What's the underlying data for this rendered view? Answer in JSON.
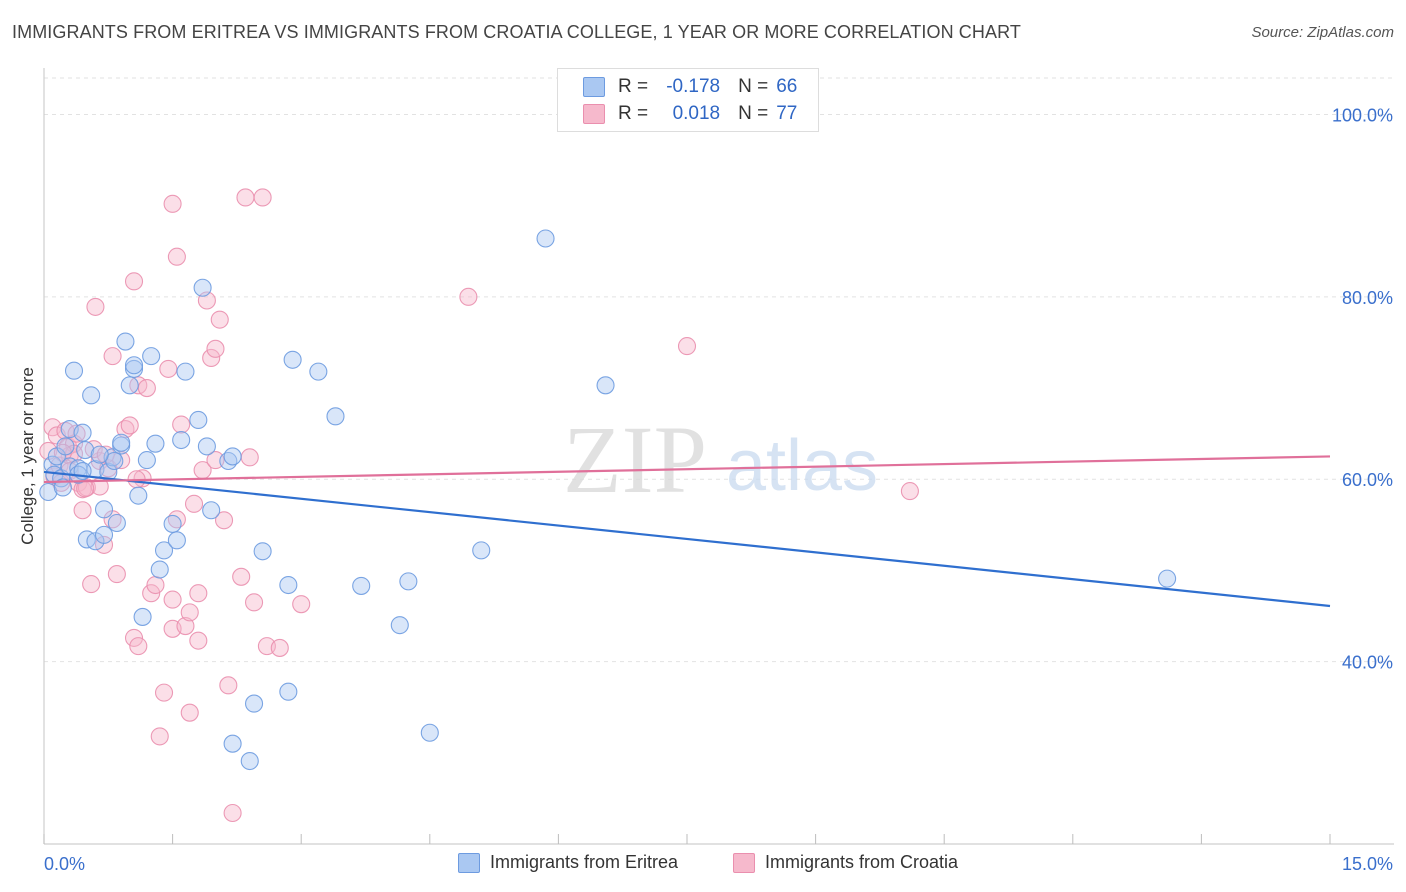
{
  "header": {
    "title": "IMMIGRANTS FROM ERITREA VS IMMIGRANTS FROM CROATIA COLLEGE, 1 YEAR OR MORE CORRELATION CHART",
    "source": "Source: ZipAtlas.com"
  },
  "watermark": {
    "zip": "ZIP",
    "atlas": "atlas"
  },
  "legend": {
    "eritrea": {
      "r_label": "R =",
      "r_value": "-0.178",
      "n_label": "N =",
      "n_value": "66"
    },
    "croatia": {
      "r_label": "R =",
      "r_value": "0.018",
      "n_label": "N =",
      "n_value": "77"
    }
  },
  "colors": {
    "eritrea_fill": "#aac8f2",
    "eritrea_stroke": "#6d9be0",
    "eritrea_line": "#2f6fcf",
    "croatia_fill": "#f6b9cc",
    "croatia_stroke": "#ea8fae",
    "croatia_line": "#e0709a",
    "tick_text": "#3a6fcc",
    "grid": "#e2e2e2"
  },
  "chart_data": {
    "type": "scatter",
    "xlabel": "",
    "ylabel": "College, 1 year or more",
    "xlim": [
      0,
      15
    ],
    "ylim": [
      20,
      104
    ],
    "x_ticks": [
      {
        "value": 0,
        "label": "0.0%"
      },
      {
        "value": 15,
        "label": "15.0%"
      }
    ],
    "y_ticks": [
      {
        "value": 40,
        "label": "40.0%"
      },
      {
        "value": 60,
        "label": "60.0%"
      },
      {
        "value": 80,
        "label": "80.0%"
      },
      {
        "value": 100,
        "label": "100.0%"
      }
    ],
    "grid": true,
    "legend_position": "top-center",
    "series": [
      {
        "name": "Immigrants from Eritrea",
        "trend": {
          "x": [
            0,
            15
          ],
          "y": [
            60.8,
            46.1
          ]
        },
        "points": [
          [
            0.05,
            58.6
          ],
          [
            0.1,
            61.6
          ],
          [
            0.12,
            60.5
          ],
          [
            0.15,
            62.5
          ],
          [
            0.2,
            60.1
          ],
          [
            0.22,
            59.1
          ],
          [
            0.25,
            63.6
          ],
          [
            0.3,
            65.5
          ],
          [
            0.3,
            61.4
          ],
          [
            0.35,
            71.9
          ],
          [
            0.4,
            61.2
          ],
          [
            0.4,
            60.5
          ],
          [
            0.45,
            65.1
          ],
          [
            0.48,
            63.2
          ],
          [
            0.5,
            53.4
          ],
          [
            0.55,
            69.2
          ],
          [
            0.6,
            61.1
          ],
          [
            0.6,
            53.2
          ],
          [
            0.7,
            53.9
          ],
          [
            0.7,
            56.7
          ],
          [
            0.75,
            60.8
          ],
          [
            0.8,
            62.4
          ],
          [
            0.82,
            62.0
          ],
          [
            0.85,
            55.2
          ],
          [
            0.9,
            63.7
          ],
          [
            0.9,
            64.0
          ],
          [
            0.95,
            75.1
          ],
          [
            1.0,
            70.3
          ],
          [
            1.05,
            72.1
          ],
          [
            1.1,
            58.2
          ],
          [
            1.15,
            44.9
          ],
          [
            1.2,
            62.1
          ],
          [
            1.25,
            73.5
          ],
          [
            1.3,
            63.9
          ],
          [
            1.35,
            50.1
          ],
          [
            1.4,
            52.2
          ],
          [
            1.5,
            55.1
          ],
          [
            1.55,
            53.3
          ],
          [
            1.6,
            64.3
          ],
          [
            1.65,
            71.8
          ],
          [
            1.8,
            66.5
          ],
          [
            1.85,
            81.0
          ],
          [
            1.9,
            63.6
          ],
          [
            1.95,
            56.6
          ],
          [
            2.15,
            62.0
          ],
          [
            2.2,
            62.5
          ],
          [
            2.2,
            31.0
          ],
          [
            2.4,
            29.1
          ],
          [
            2.45,
            35.4
          ],
          [
            2.55,
            52.1
          ],
          [
            2.85,
            48.4
          ],
          [
            2.85,
            36.7
          ],
          [
            2.9,
            73.1
          ],
          [
            3.2,
            71.8
          ],
          [
            3.4,
            66.9
          ],
          [
            3.7,
            48.3
          ],
          [
            4.25,
            48.8
          ],
          [
            4.15,
            44.0
          ],
          [
            4.5,
            32.2
          ],
          [
            5.1,
            52.2
          ],
          [
            5.85,
            86.4
          ],
          [
            6.55,
            70.3
          ],
          [
            13.1,
            49.1
          ],
          [
            1.05,
            72.5
          ],
          [
            0.45,
            60.9
          ],
          [
            0.65,
            62.7
          ]
        ]
      },
      {
        "name": "Immigrants from Croatia",
        "trend": {
          "x": [
            0,
            15
          ],
          "y": [
            59.7,
            62.5
          ]
        },
        "points": [
          [
            0.05,
            63.1
          ],
          [
            0.1,
            65.7
          ],
          [
            0.12,
            60.3
          ],
          [
            0.15,
            64.8
          ],
          [
            0.18,
            61.5
          ],
          [
            0.2,
            59.6
          ],
          [
            0.25,
            65.3
          ],
          [
            0.28,
            63.6
          ],
          [
            0.3,
            62.6
          ],
          [
            0.3,
            60.9
          ],
          [
            0.35,
            63.9
          ],
          [
            0.35,
            62.8
          ],
          [
            0.4,
            59.6
          ],
          [
            0.45,
            56.6
          ],
          [
            0.45,
            58.9
          ],
          [
            0.5,
            59.1
          ],
          [
            0.55,
            48.5
          ],
          [
            0.6,
            78.9
          ],
          [
            0.65,
            62.0
          ],
          [
            0.65,
            59.2
          ],
          [
            0.7,
            52.8
          ],
          [
            0.75,
            61.2
          ],
          [
            0.8,
            55.6
          ],
          [
            0.8,
            73.5
          ],
          [
            0.85,
            49.6
          ],
          [
            0.9,
            62.1
          ],
          [
            0.95,
            65.5
          ],
          [
            1.0,
            65.9
          ],
          [
            1.05,
            42.6
          ],
          [
            1.05,
            81.7
          ],
          [
            1.1,
            41.7
          ],
          [
            1.1,
            70.3
          ],
          [
            1.15,
            60.1
          ],
          [
            1.2,
            70.0
          ],
          [
            1.25,
            47.5
          ],
          [
            1.3,
            48.4
          ],
          [
            1.35,
            31.8
          ],
          [
            1.4,
            36.6
          ],
          [
            1.45,
            72.1
          ],
          [
            1.5,
            46.8
          ],
          [
            1.5,
            43.6
          ],
          [
            1.5,
            90.2
          ],
          [
            1.55,
            55.6
          ],
          [
            1.6,
            66.0
          ],
          [
            1.65,
            43.9
          ],
          [
            1.7,
            34.4
          ],
          [
            1.7,
            45.4
          ],
          [
            1.75,
            57.3
          ],
          [
            1.8,
            42.3
          ],
          [
            1.8,
            47.5
          ],
          [
            1.85,
            61.0
          ],
          [
            1.9,
            79.6
          ],
          [
            1.95,
            73.3
          ],
          [
            2.0,
            74.3
          ],
          [
            2.0,
            62.1
          ],
          [
            2.05,
            77.5
          ],
          [
            2.1,
            55.5
          ],
          [
            2.15,
            37.4
          ],
          [
            2.2,
            23.4
          ],
          [
            2.3,
            49.3
          ],
          [
            2.35,
            90.9
          ],
          [
            2.4,
            62.4
          ],
          [
            2.45,
            46.5
          ],
          [
            2.55,
            90.9
          ],
          [
            2.6,
            41.7
          ],
          [
            2.75,
            41.5
          ],
          [
            3.0,
            46.3
          ],
          [
            4.95,
            80.0
          ],
          [
            1.55,
            84.4
          ],
          [
            0.58,
            63.3
          ],
          [
            0.72,
            62.7
          ],
          [
            0.48,
            59.0
          ],
          [
            1.08,
            60.0
          ],
          [
            7.5,
            74.6
          ],
          [
            10.1,
            58.7
          ],
          [
            0.38,
            65.0
          ],
          [
            0.22,
            62.9
          ]
        ]
      }
    ]
  },
  "bottom_legend": {
    "eritrea_label": "Immigrants from Eritrea",
    "croatia_label": "Immigrants from Croatia"
  }
}
